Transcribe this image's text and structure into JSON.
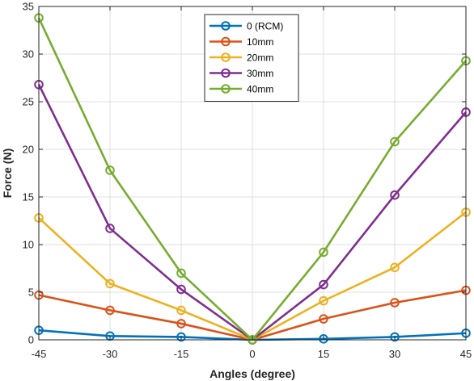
{
  "chart_data": {
    "type": "line",
    "title": "",
    "xlabel": "Angles (degree)",
    "ylabel": "Force (N)",
    "x": [
      -45,
      -30,
      -15,
      0,
      15,
      30,
      45
    ],
    "x_tick_labels": [
      "-45",
      "-30",
      "-15",
      "0",
      "15",
      "30",
      "45"
    ],
    "y_tick_labels": [
      "0",
      "5",
      "10",
      "15",
      "20",
      "25",
      "30",
      "35"
    ],
    "xlim": [
      -45,
      45
    ],
    "ylim": [
      0,
      35
    ],
    "grid": true,
    "legend_position": "top-center",
    "series": [
      {
        "name": "0 (RCM)",
        "color": "#0072BD",
        "values": [
          1.0,
          0.4,
          0.3,
          0.0,
          0.1,
          0.3,
          0.7
        ]
      },
      {
        "name": "10mm",
        "color": "#D95319",
        "values": [
          4.7,
          3.1,
          1.7,
          0.0,
          2.2,
          3.9,
          5.2
        ]
      },
      {
        "name": "20mm",
        "color": "#EDB120",
        "values": [
          12.8,
          5.9,
          3.1,
          0.0,
          4.1,
          7.6,
          13.4
        ]
      },
      {
        "name": "30mm",
        "color": "#7E2F8E",
        "values": [
          26.8,
          11.7,
          5.3,
          0.0,
          5.8,
          15.2,
          23.9
        ]
      },
      {
        "name": "40mm",
        "color": "#77AC30",
        "values": [
          33.8,
          17.8,
          7.0,
          0.0,
          9.2,
          20.8,
          29.3
        ]
      }
    ]
  }
}
